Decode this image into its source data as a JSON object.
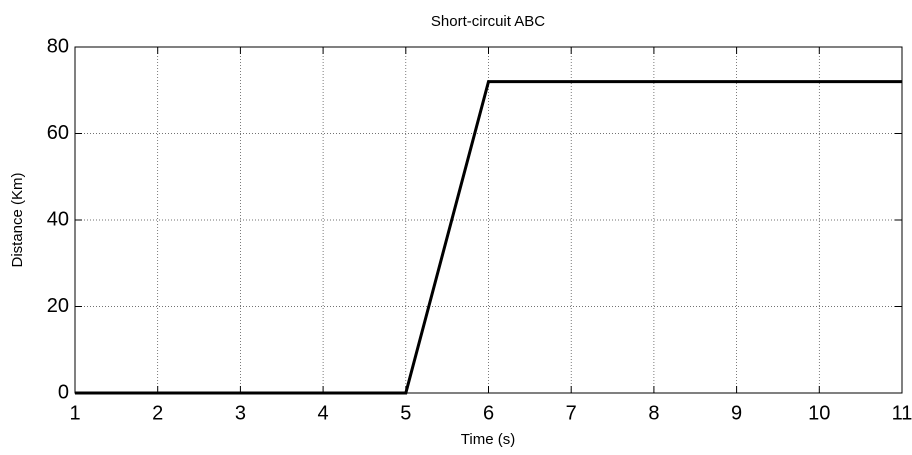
{
  "chart_data": {
    "type": "line",
    "title": "Short-circuit ABC",
    "xlabel": "Time (s)",
    "ylabel": "Distance (Km)",
    "x": [
      1,
      5,
      6,
      11
    ],
    "series": [
      {
        "color": "#000000",
        "values": [
          0,
          0,
          72,
          72
        ]
      }
    ],
    "xlim": [
      1,
      11
    ],
    "xticks": [
      1,
      2,
      3,
      4,
      5,
      6,
      7,
      8,
      9,
      10,
      11
    ],
    "ylim": [
      0,
      80
    ],
    "yticks": [
      0,
      20,
      40,
      60,
      80
    ],
    "grid": true
  }
}
